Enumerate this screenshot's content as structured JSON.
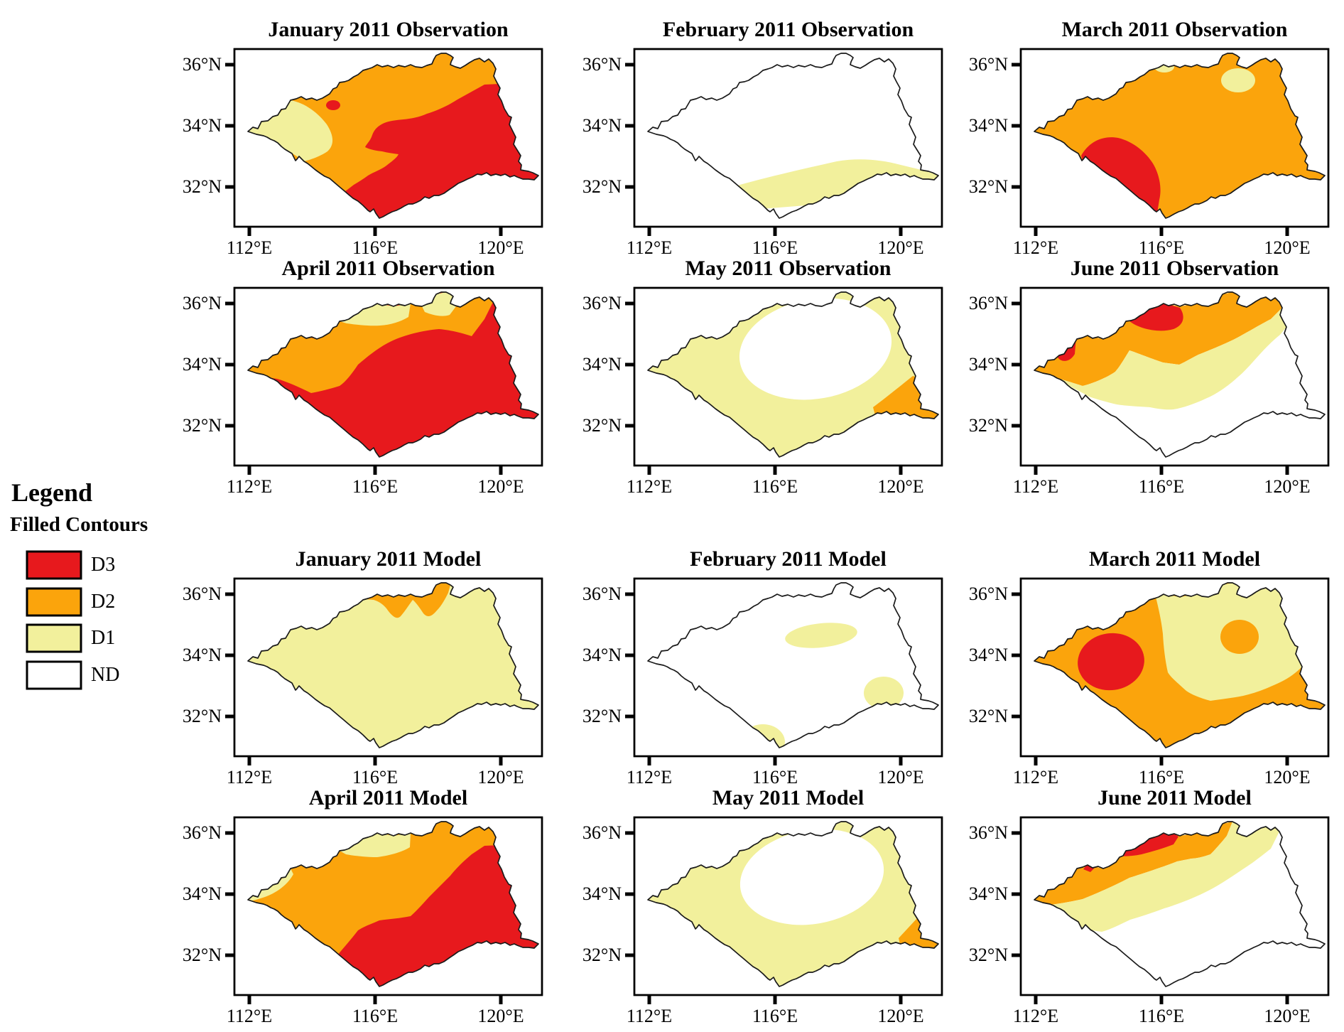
{
  "figure": {
    "description": "Monthly drought category maps (filled contours) over a river basin, observation versus model, January-June 2011",
    "axes": {
      "lat_ticks": [
        "36°N",
        "34°N",
        "32°N"
      ],
      "lon_ticks": [
        "112°E",
        "116°E",
        "120°E"
      ]
    },
    "legend": {
      "title": "Legend",
      "subtitle": "Filled Contours",
      "items": [
        {
          "label": "D3"
        },
        {
          "label": "D2"
        },
        {
          "label": "D1"
        },
        {
          "label": "ND"
        }
      ]
    },
    "panels": [
      {
        "id": "jan-obs",
        "title": "January 2011 Observation",
        "summary": "D2 covers most of the basin; D3 over the southeast and south; D1 pocket in the west; small D3 spot north-center"
      },
      {
        "id": "feb-obs",
        "title": "February 2011 Observation",
        "summary": "ND over almost the whole basin; narrow D1 band along the southern boundary"
      },
      {
        "id": "mar-obs",
        "title": "March 2011 Observation",
        "summary": "D2 dominant; large D3 area in the south-centre; small D1 patches on northern and northeastern edges"
      },
      {
        "id": "apr-obs",
        "title": "April 2011 Observation",
        "summary": "D3 over centre, south and east; D2 band across west and northwest; thin D1 strips along the northern boundary"
      },
      {
        "id": "may-obs",
        "title": "May 2011 Observation",
        "summary": "D1 over most of the basin; large ND area in the north-centre; small D2 patch at the eastern outlet"
      },
      {
        "id": "jun-obs",
        "title": "June 2011 Observation",
        "summary": "D2 band along northwest and north; D3 pockets on northern and western edges; D1 band through the middle; ND over south and east"
      },
      {
        "id": "jan-model",
        "title": "January 2011 Model",
        "summary": "D1 covers nearly the whole basin; jagged D2 strip along the northern boundary"
      },
      {
        "id": "feb-model",
        "title": "February 2011 Model",
        "summary": "ND dominant; small D1 patches in the centre-east, on the southern boundary and at the eastern edge"
      },
      {
        "id": "mar-model",
        "title": "March 2011 Model",
        "summary": "D2 over west and south; D3 oval in the west-centre; D1 over the east with an embedded D2 patch"
      },
      {
        "id": "apr-model",
        "title": "April 2011 Model",
        "summary": "D2 over west and centre; D3 over southeast and east; thin D1 strips along northwest and northern boundaries"
      },
      {
        "id": "may-model",
        "title": "May 2011 Model",
        "summary": "D1 over most of the basin; ND area in the north-centre; small D2 patch at the eastern outlet"
      },
      {
        "id": "jun-model",
        "title": "June 2011 Model",
        "summary": "D2 band along the northwest; small D3 strips on the northern edge; D1 band through the middle; ND over south and east"
      }
    ]
  },
  "colors": {
    "d3": "#E7191D",
    "d2": "#FBA40C",
    "d1": "#F2F09C",
    "nd": "#FFFFFF",
    "outline": "#1A1A1A"
  }
}
